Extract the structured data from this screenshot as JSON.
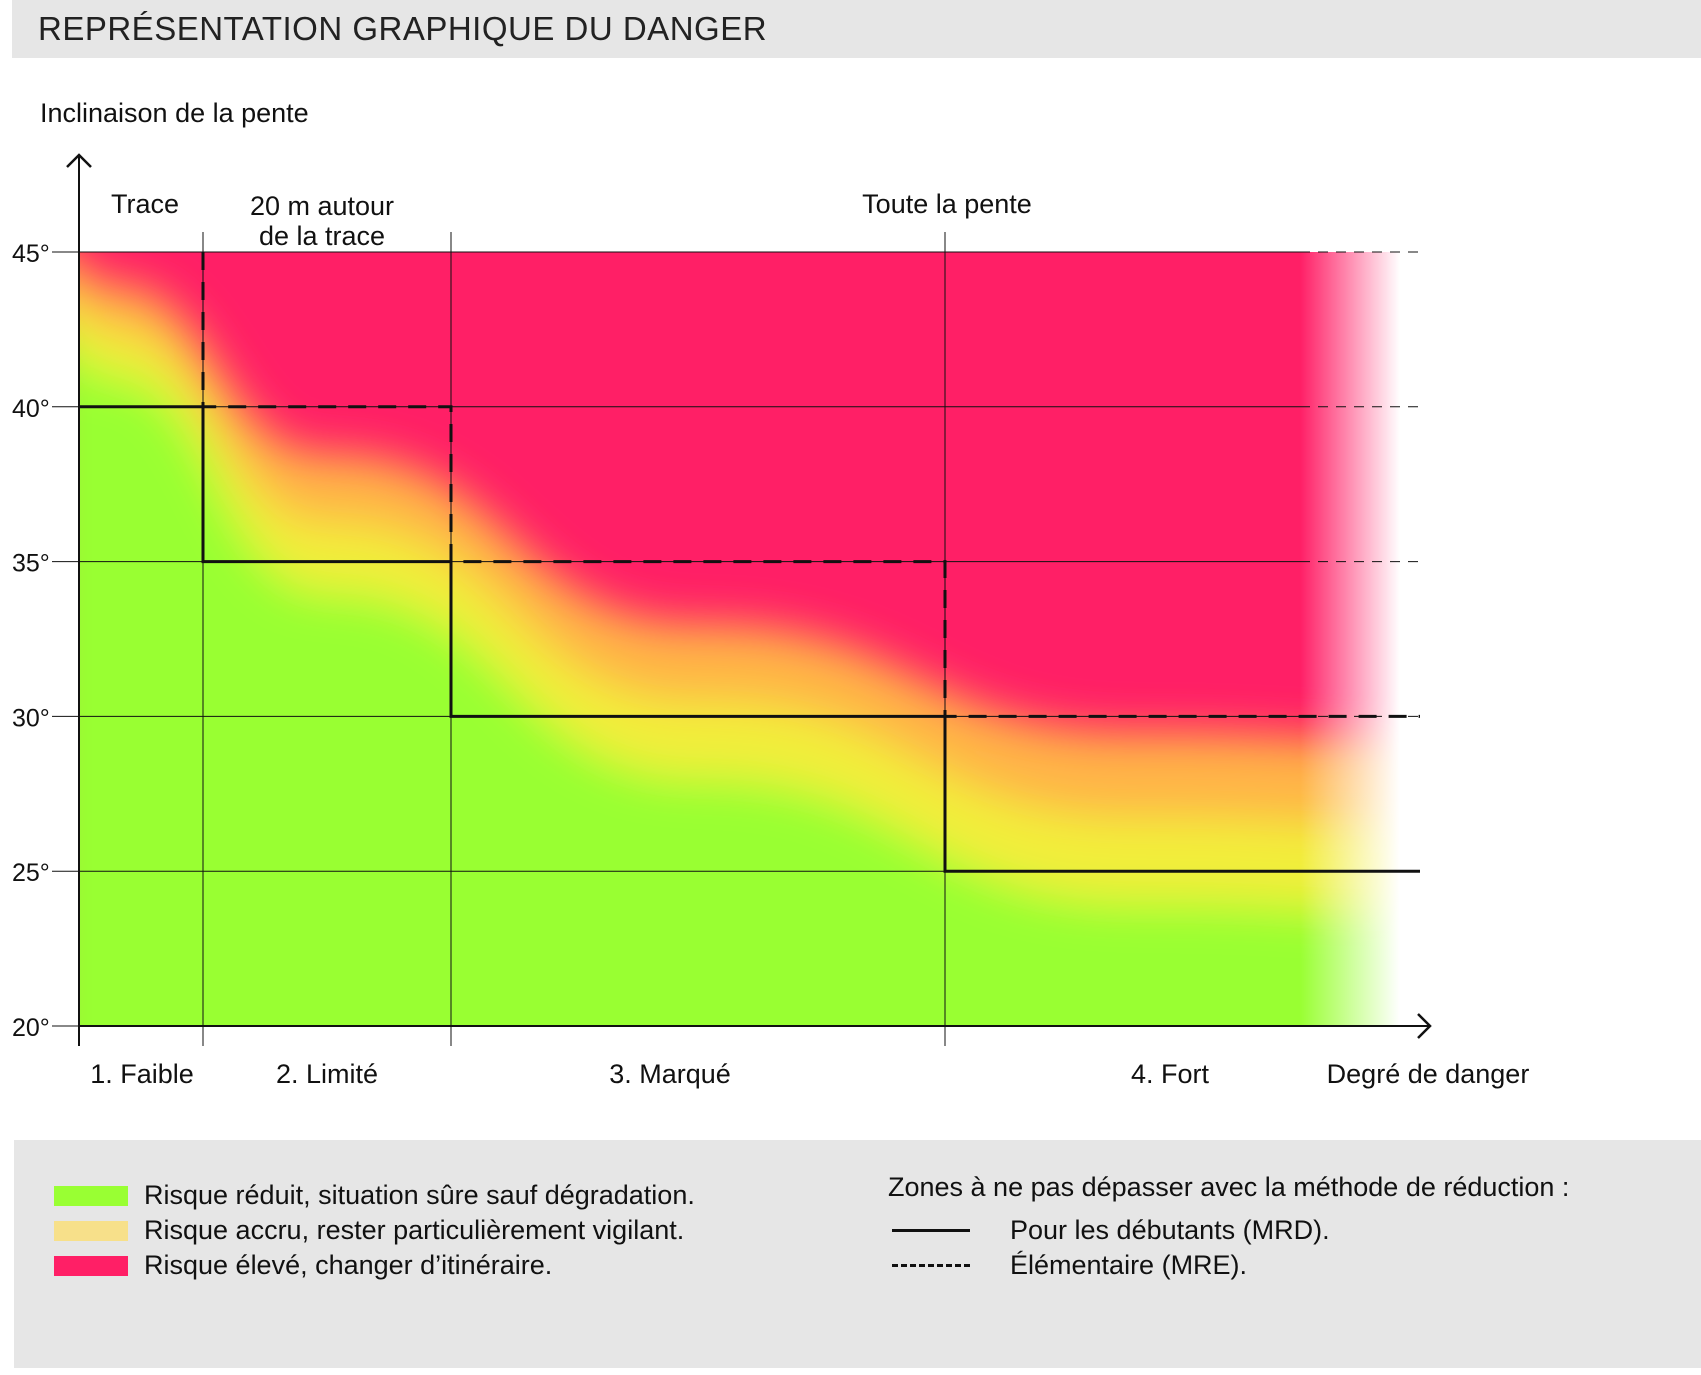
{
  "header": {
    "title": "REPRÉSENTATION GRAPHIQUE DU DANGER"
  },
  "chart_data": {
    "type": "area",
    "title": "REPRÉSENTATION GRAPHIQUE DU DANGER",
    "ylabel": "Inclinaison de la pente",
    "xlabel": "Degré de danger",
    "ylim": [
      20,
      45
    ],
    "y_ticks": [
      "20°",
      "25°",
      "30°",
      "35°",
      "40°",
      "45°"
    ],
    "y_tick_values": [
      20,
      25,
      30,
      35,
      40,
      45
    ],
    "categories": [
      "1. Faible",
      "2. Limité",
      "3. Marqué",
      "4. Fort"
    ],
    "zones": [
      "Trace",
      "20 m autour de la trace",
      "Toute la pente"
    ],
    "zone_labels": [
      "Trace",
      "20 m autour",
      "de la trace",
      "Toute la pente"
    ],
    "series": [
      {
        "name": "Pour les débutants (MRD).",
        "style": "solid",
        "values": [
          40,
          35,
          30,
          25
        ]
      },
      {
        "name": "Élémentaire (MRE).",
        "style": "dashed",
        "values": [
          45,
          40,
          35,
          30
        ]
      }
    ],
    "risk_boundaries": {
      "green_upper": [
        41,
        34,
        28,
        24
      ],
      "red_lower": [
        44,
        38.5,
        33,
        29.5
      ]
    },
    "colors": {
      "green": "#99ff33",
      "yellow": "#f2ee3a",
      "orange": "#ffb347",
      "red": "#ff1f66",
      "line": "#111111"
    },
    "grid": true
  },
  "legend": {
    "risk_items": [
      {
        "label": "Risque réduit, situation sûre sauf dégradation.",
        "color": "#99ff33"
      },
      {
        "label": "Risque accru, rester particulièrement vigilant.",
        "color": "#f7e08a"
      },
      {
        "label": "Risque élevé, changer d’itinéraire.",
        "color": "#ff1f66"
      }
    ],
    "method_title": "Zones à ne pas dépasser avec la méthode de réduction :",
    "method_items": [
      {
        "label": "Pour les débutants (MRD).",
        "style": "solid"
      },
      {
        "label": "Élémentaire (MRE).",
        "style": "dashed"
      }
    ]
  }
}
